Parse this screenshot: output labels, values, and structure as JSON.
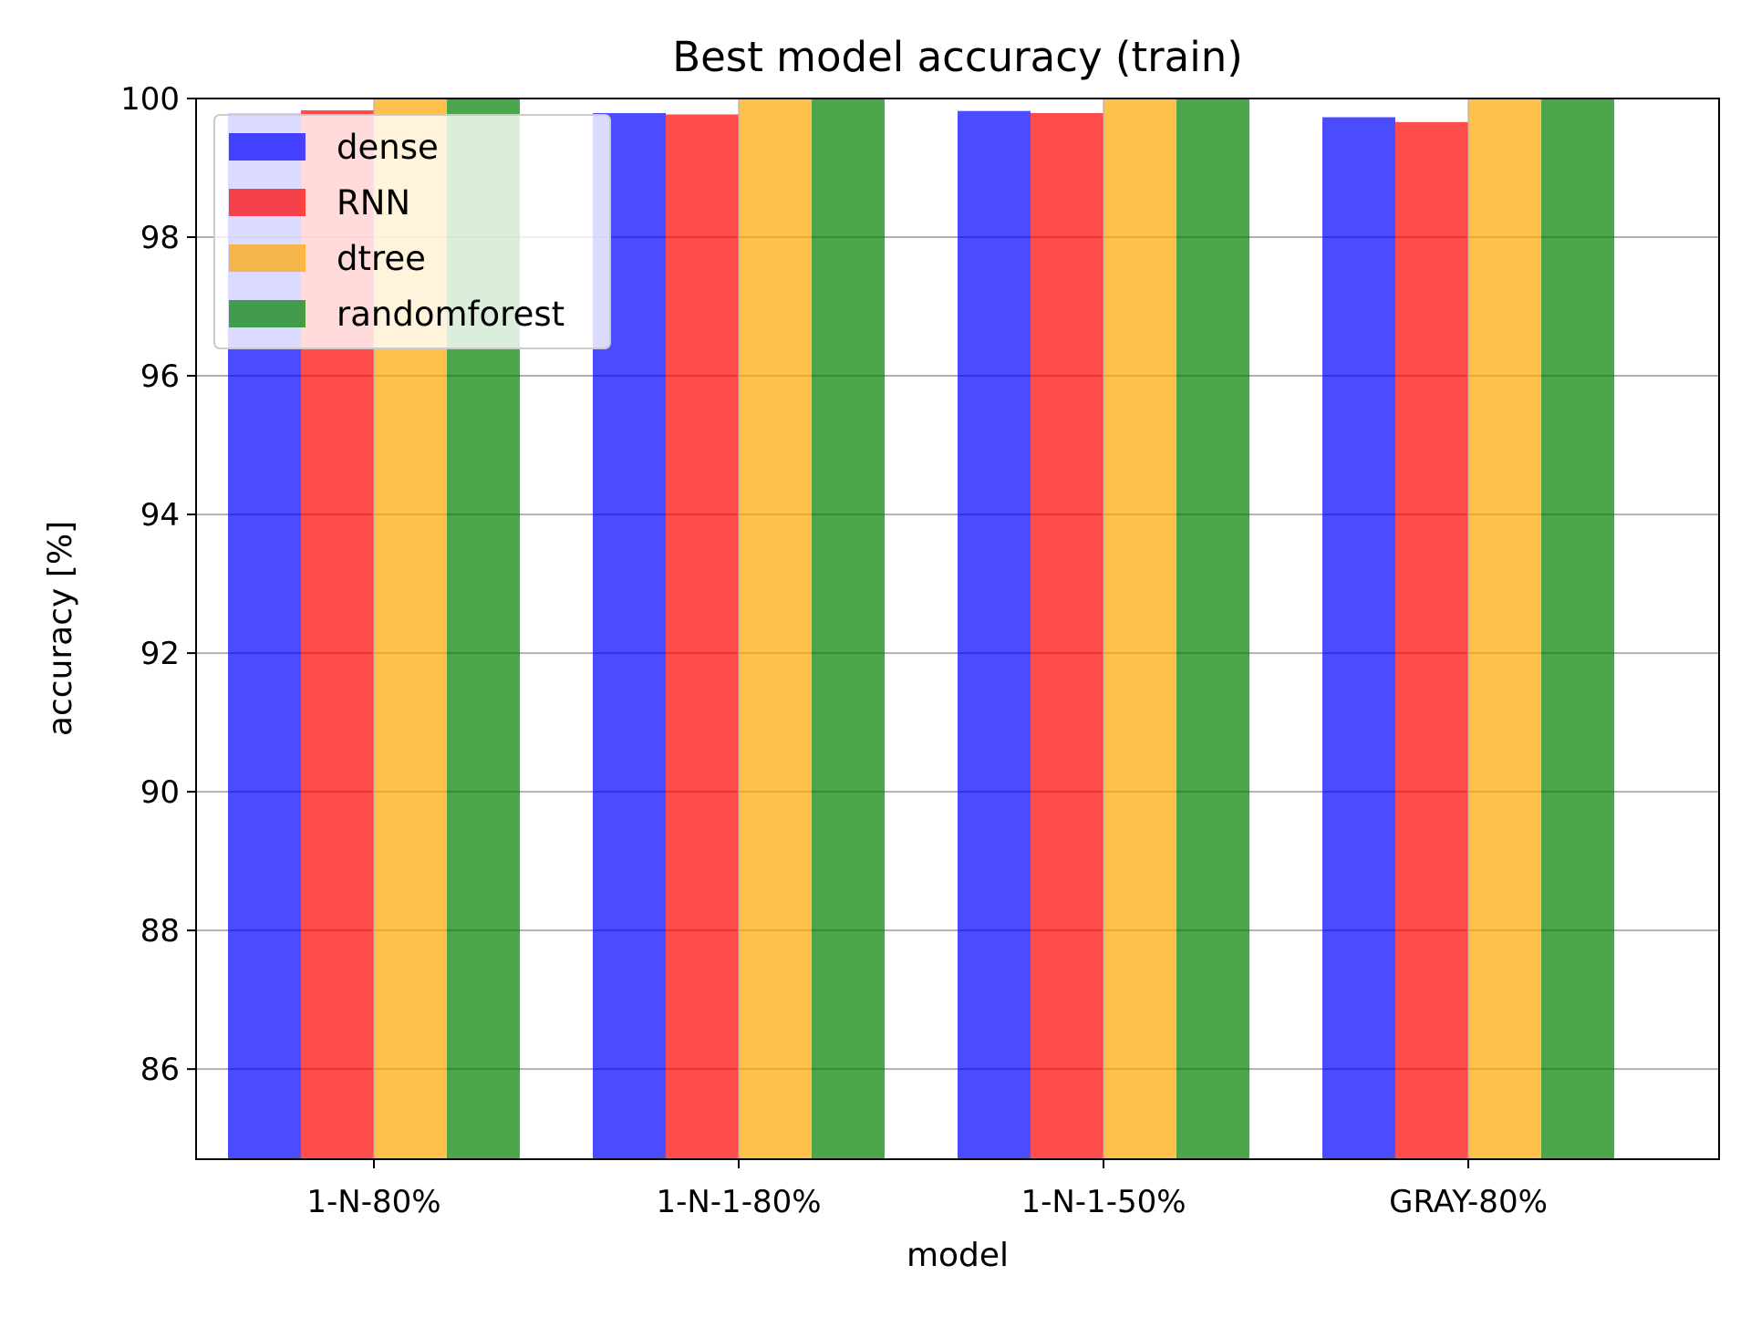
{
  "chart_data": {
    "type": "bar",
    "title": "Best model accuracy (train)",
    "xlabel": "model",
    "ylabel": "accuracy [%]",
    "categories": [
      "1-N-80%",
      "1-N-1-80%",
      "1-N-1-50%",
      "GRAY-80%"
    ],
    "ylim": [
      84.7,
      100
    ],
    "yticks": [
      86,
      88,
      90,
      92,
      94,
      96,
      98,
      100
    ],
    "grid": true,
    "legend_position": "upper-left",
    "series": [
      {
        "name": "dense",
        "color": "#0000ff",
        "values": [
          99.78,
          99.79,
          99.82,
          99.73
        ]
      },
      {
        "name": "RNN",
        "color": "#ff0000",
        "values": [
          99.83,
          99.77,
          99.79,
          99.66
        ]
      },
      {
        "name": "dtree",
        "color": "#ffa500",
        "values": [
          100,
          100,
          100,
          100
        ]
      },
      {
        "name": "randomforest",
        "color": "#008000",
        "values": [
          100,
          100,
          100,
          100
        ]
      }
    ],
    "bar_opacity": 0.7
  }
}
